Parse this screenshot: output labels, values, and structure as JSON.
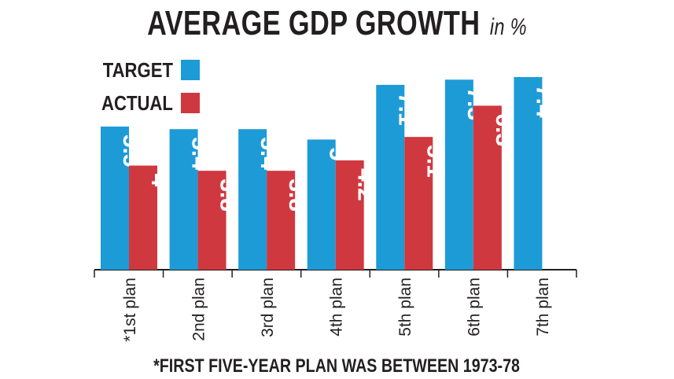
{
  "chart_data": {
    "type": "bar",
    "title": "AVERAGE GDP GROWTH",
    "unit_label": "in %",
    "categories": [
      "*1st plan",
      "2nd plan",
      "3rd plan",
      "4th plan",
      "5th plan",
      "6th plan",
      "7th plan"
    ],
    "series": [
      {
        "name": "TARGET",
        "color": "#1d9bd7",
        "values": [
          5.5,
          5.4,
          5.4,
          5,
          7.1,
          7.3,
          7.4
        ],
        "labels": [
          "5.5",
          "5.4",
          "5.4",
          "5",
          "7.1",
          "7.3",
          "7.4"
        ]
      },
      {
        "name": "ACTUAL",
        "color": "#d0383f",
        "values": [
          4,
          3.8,
          3.8,
          4.2,
          5.1,
          6.3,
          null
        ],
        "labels": [
          "4",
          "3.8",
          "3.8",
          "4.2",
          "5.1",
          "6.3",
          ""
        ]
      }
    ],
    "ylim": [
      0,
      7.4
    ],
    "grid": false,
    "legend_position": "top-left",
    "footnote": "*FIRST FIVE-YEAR PLAN WAS BETWEEN 1973-78"
  }
}
